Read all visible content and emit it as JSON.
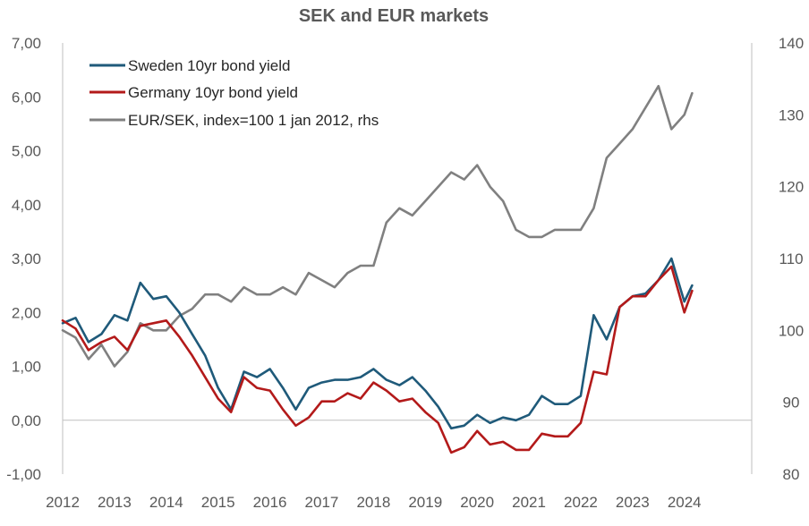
{
  "chart_data": {
    "type": "line",
    "title": "SEK and EUR markets",
    "x_ticks": [
      "2012",
      "2013",
      "2014",
      "2015",
      "2016",
      "2017",
      "2018",
      "2019",
      "2020",
      "2021",
      "2022",
      "2023",
      "2024"
    ],
    "xlim": [
      2012.0,
      2025.3
    ],
    "y_left": {
      "ticks": [
        "-1,00",
        "0,00",
        "1,00",
        "2,00",
        "3,00",
        "4,00",
        "5,00",
        "6,00",
        "7,00"
      ],
      "ylim": [
        -1,
        7
      ]
    },
    "y_right": {
      "ticks": [
        "80",
        "90",
        "100",
        "110",
        "120",
        "130",
        "140"
      ],
      "ylim": [
        80,
        140
      ]
    },
    "grid": false,
    "legend_position": "top-left",
    "series": [
      {
        "name": "Sweden 10yr bond yield",
        "axis": "left",
        "color": "#1f5a7a",
        "x": [
          2012.0,
          2012.25,
          2012.5,
          2012.75,
          2013.0,
          2013.25,
          2013.5,
          2013.75,
          2014.0,
          2014.25,
          2014.5,
          2014.75,
          2015.0,
          2015.25,
          2015.5,
          2015.75,
          2016.0,
          2016.25,
          2016.5,
          2016.75,
          2017.0,
          2017.25,
          2017.5,
          2017.75,
          2018.0,
          2018.25,
          2018.5,
          2018.75,
          2019.0,
          2019.25,
          2019.5,
          2019.75,
          2020.0,
          2020.25,
          2020.5,
          2020.75,
          2021.0,
          2021.25,
          2021.5,
          2021.75,
          2022.0,
          2022.25,
          2022.5,
          2022.75,
          2023.0,
          2023.25,
          2023.5,
          2023.75,
          2024.0,
          2024.15
        ],
        "values": [
          1.8,
          1.9,
          1.45,
          1.6,
          1.95,
          1.85,
          2.55,
          2.25,
          2.3,
          2.0,
          1.6,
          1.2,
          0.6,
          0.2,
          0.9,
          0.8,
          0.95,
          0.6,
          0.2,
          0.6,
          0.7,
          0.75,
          0.75,
          0.8,
          0.95,
          0.75,
          0.65,
          0.8,
          0.55,
          0.25,
          -0.15,
          -0.1,
          0.1,
          -0.05,
          0.05,
          0.0,
          0.1,
          0.45,
          0.3,
          0.3,
          0.45,
          1.95,
          1.5,
          2.1,
          2.3,
          2.35,
          2.6,
          3.0,
          2.2,
          2.5
        ]
      },
      {
        "name": "Germany 10yr bond yield",
        "axis": "left",
        "color": "#b31a1a",
        "x": [
          2012.0,
          2012.25,
          2012.5,
          2012.75,
          2013.0,
          2013.25,
          2013.5,
          2013.75,
          2014.0,
          2014.25,
          2014.5,
          2014.75,
          2015.0,
          2015.25,
          2015.5,
          2015.75,
          2016.0,
          2016.25,
          2016.5,
          2016.75,
          2017.0,
          2017.25,
          2017.5,
          2017.75,
          2018.0,
          2018.25,
          2018.5,
          2018.75,
          2019.0,
          2019.25,
          2019.5,
          2019.75,
          2020.0,
          2020.25,
          2020.5,
          2020.75,
          2021.0,
          2021.25,
          2021.5,
          2021.75,
          2022.0,
          2022.25,
          2022.5,
          2022.75,
          2023.0,
          2023.25,
          2023.5,
          2023.75,
          2024.0,
          2024.15
        ],
        "values": [
          1.85,
          1.7,
          1.3,
          1.45,
          1.55,
          1.3,
          1.75,
          1.8,
          1.85,
          1.55,
          1.2,
          0.8,
          0.4,
          0.15,
          0.8,
          0.6,
          0.55,
          0.2,
          -0.1,
          0.05,
          0.35,
          0.35,
          0.5,
          0.4,
          0.7,
          0.55,
          0.35,
          0.4,
          0.15,
          -0.05,
          -0.6,
          -0.5,
          -0.2,
          -0.45,
          -0.4,
          -0.55,
          -0.55,
          -0.25,
          -0.3,
          -0.3,
          -0.05,
          0.9,
          0.85,
          2.1,
          2.3,
          2.3,
          2.6,
          2.85,
          2.0,
          2.4
        ]
      },
      {
        "name": "EUR/SEK, index=100 1 jan 2012, rhs",
        "axis": "right",
        "color": "#808080",
        "x": [
          2012.0,
          2012.25,
          2012.5,
          2012.75,
          2013.0,
          2013.25,
          2013.5,
          2013.75,
          2014.0,
          2014.25,
          2014.5,
          2014.75,
          2015.0,
          2015.25,
          2015.5,
          2015.75,
          2016.0,
          2016.25,
          2016.5,
          2016.75,
          2017.0,
          2017.25,
          2017.5,
          2017.75,
          2018.0,
          2018.25,
          2018.5,
          2018.75,
          2019.0,
          2019.25,
          2019.5,
          2019.75,
          2020.0,
          2020.25,
          2020.5,
          2020.75,
          2021.0,
          2021.25,
          2021.5,
          2021.75,
          2022.0,
          2022.25,
          2022.5,
          2022.75,
          2023.0,
          2023.25,
          2023.5,
          2023.75,
          2024.0,
          2024.15
        ],
        "values": [
          100,
          99,
          96,
          98,
          95,
          97,
          101,
          100,
          100,
          102,
          103,
          105,
          105,
          104,
          106,
          105,
          105,
          106,
          105,
          108,
          107,
          106,
          108,
          109,
          109,
          115,
          117,
          116,
          118,
          120,
          122,
          121,
          123,
          120,
          118,
          114,
          113,
          113,
          114,
          114,
          114,
          117,
          124,
          126,
          128,
          131,
          134,
          128,
          130,
          133
        ]
      }
    ]
  }
}
